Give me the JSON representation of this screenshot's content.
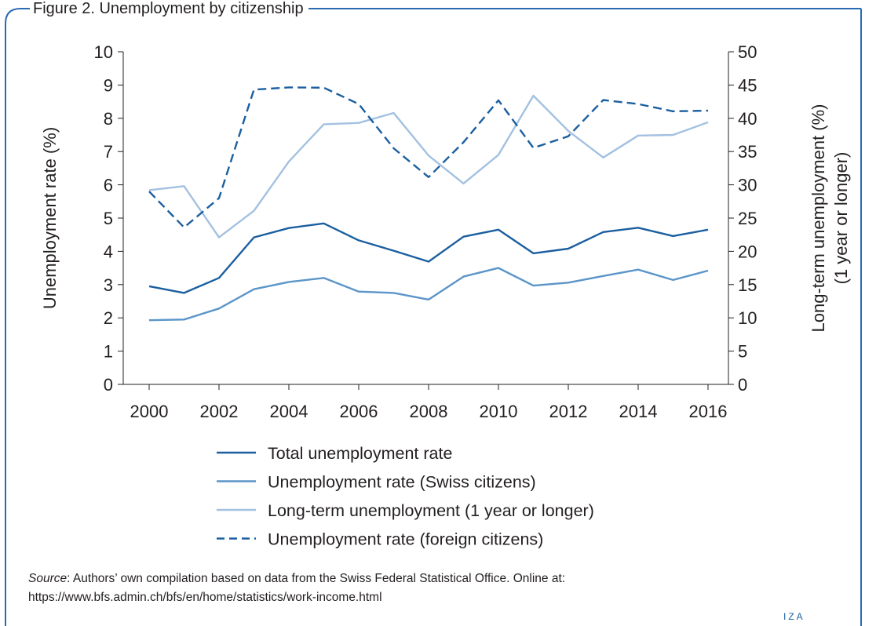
{
  "figure": {
    "title": "Figure 2. Unemployment by citizenship",
    "source_label": "Source",
    "source_text": ": Authors’ own compilation based on data from the Swiss Federal Statistical Office. Online at: https://www.bfs.admin.ch/bfs/en/home/statistics/work-income.html",
    "logo_text": "IZA",
    "frame_color": "#2a6ab0"
  },
  "chart_data": {
    "type": "line",
    "title": "",
    "xlabel": "",
    "ylabel": "Unemployment rate (%)",
    "y2label_lines": [
      "Long-term unemployment (%)",
      "(1 year or longer)"
    ],
    "x": [
      2000,
      2001,
      2002,
      2003,
      2004,
      2005,
      2006,
      2007,
      2008,
      2009,
      2010,
      2011,
      2012,
      2013,
      2014,
      2015,
      2016
    ],
    "x_ticks": [
      2000,
      2002,
      2004,
      2006,
      2008,
      2010,
      2012,
      2014,
      2016
    ],
    "ylim": [
      0,
      10
    ],
    "y_ticks": [
      0,
      1,
      2,
      3,
      4,
      5,
      6,
      7,
      8,
      9,
      10
    ],
    "y2lim": [
      0,
      50
    ],
    "y2_ticks": [
      0,
      5,
      10,
      15,
      20,
      25,
      30,
      35,
      40,
      45,
      50
    ],
    "grid": false,
    "legend_position": "bottom",
    "series": [
      {
        "name": "Total unemployment rate",
        "axis": "left",
        "color": "#1b5fa0",
        "dash": "solid",
        "values": [
          2.95,
          2.75,
          3.2,
          4.42,
          4.7,
          4.84,
          4.33,
          4.02,
          3.69,
          4.44,
          4.65,
          3.94,
          4.08,
          4.58,
          4.71,
          4.46,
          4.65
        ]
      },
      {
        "name": "Unemployment rate (Swiss citizens)",
        "axis": "left",
        "color": "#5b95c9",
        "dash": "solid",
        "values": [
          1.93,
          1.95,
          2.28,
          2.86,
          3.08,
          3.2,
          2.79,
          2.75,
          2.55,
          3.24,
          3.5,
          2.97,
          3.06,
          3.26,
          3.45,
          3.14,
          3.42
        ]
      },
      {
        "name": "Long-term unemployment (1 year or longer)",
        "axis": "right",
        "color": "#a3c1e0",
        "dash": "solid",
        "values": [
          29.2,
          29.8,
          22.1,
          26.1,
          33.5,
          39.1,
          39.3,
          40.8,
          34.4,
          30.2,
          34.5,
          43.4,
          38.1,
          34.1,
          37.4,
          37.5,
          39.4
        ]
      },
      {
        "name": "Unemployment rate (foreign citizens)",
        "axis": "left",
        "color": "#1b5fa0",
        "dash": "dashed",
        "values": [
          5.8,
          4.72,
          5.6,
          8.86,
          8.93,
          8.92,
          8.43,
          7.1,
          6.23,
          7.28,
          8.54,
          7.11,
          7.46,
          8.55,
          8.43,
          8.21,
          8.23
        ]
      }
    ]
  }
}
